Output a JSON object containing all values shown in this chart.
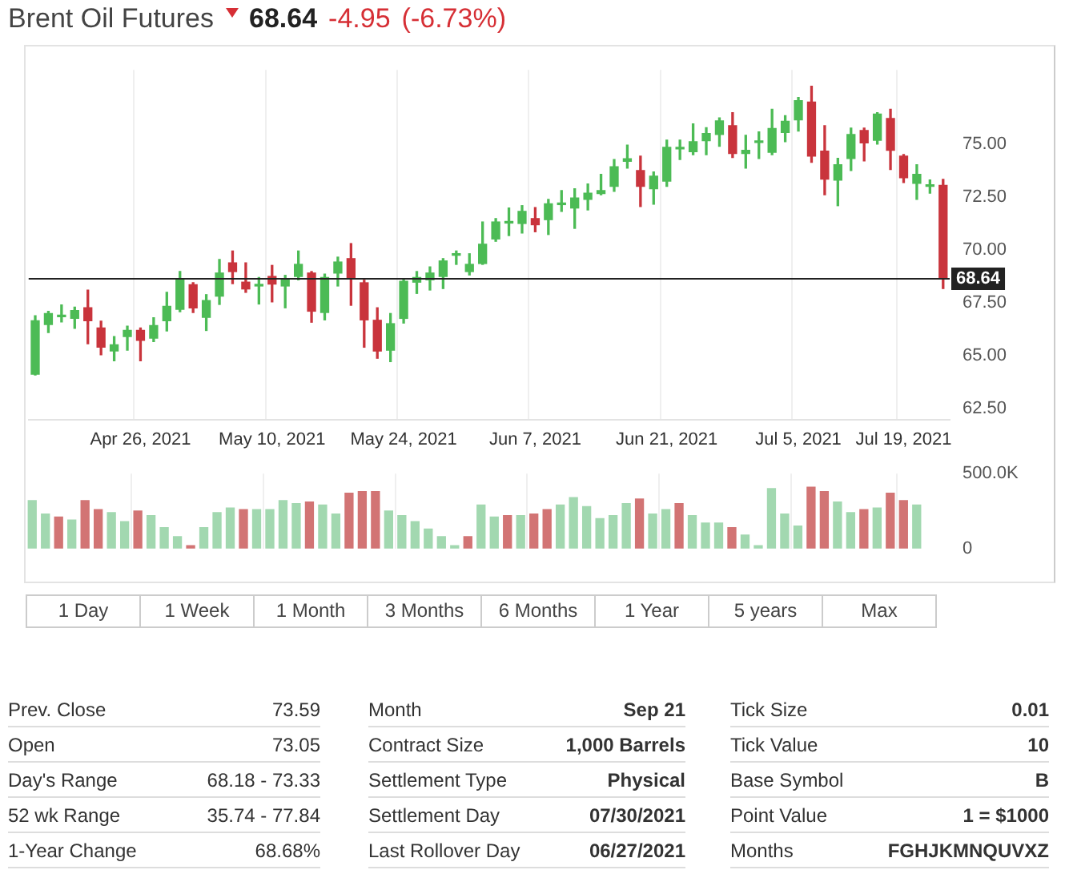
{
  "chart_data": [
    {
      "type": "candlestick",
      "title": "Brent Oil Futures",
      "annotations": [
        "68.64",
        "-4.95",
        "(-6.73%)",
        "1 Day",
        "1 Week",
        "1 Month",
        "3 Months",
        "6 Months",
        "1 Year",
        "5 years",
        "Max",
        "Prev. Close",
        "73.59",
        "Open",
        "73.05",
        "Day's Range",
        "68.18 - 73.33",
        "52 wk Range",
        "35.74 - 77.84",
        "1-Year Change",
        "68.68%",
        "Month",
        "Sep 21",
        "Contract Size",
        "1,000 Barrels",
        "Settlement Type",
        "Physical",
        "Settlement Day",
        "07/30/2021",
        "Last Rollover Day",
        "06/27/2021",
        "Tick Size",
        "0.01",
        "Tick Value",
        "10",
        "Base Symbol",
        "B",
        "Point Value",
        "1 = $1000",
        "Months",
        "FGHJKMNQUVXZ"
      ],
      "categories": [
        null,
        null,
        null,
        null,
        null,
        null,
        null,
        null,
        "Apr 26, 2021",
        null,
        null,
        null,
        null,
        null,
        null,
        null,
        null,
        null,
        "May 10, 2021",
        null,
        null,
        null,
        null,
        null,
        null,
        null,
        null,
        null,
        "May 24, 2021",
        null,
        null,
        null,
        null,
        null,
        null,
        null,
        null,
        null,
        "Jun 7, 2021",
        null,
        null,
        null,
        null,
        null,
        null,
        null,
        null,
        null,
        "Jun 21, 2021",
        null,
        null,
        null,
        null,
        null,
        null,
        null,
        null,
        null,
        "Jul 5, 2021",
        null,
        null,
        null,
        null,
        null,
        null,
        null,
        "Jul 19, 2021",
        null,
        null,
        null
      ],
      "ohlc": [
        [
          64.14,
          66.89,
          64.1,
          66.66
        ],
        [
          66.48,
          67.1,
          66.1,
          67.0
        ],
        [
          66.85,
          67.4,
          66.6,
          66.9
        ],
        [
          66.77,
          67.3,
          66.3,
          67.14
        ],
        [
          67.27,
          68.1,
          65.57,
          66.66
        ],
        [
          66.32,
          66.64,
          65.05,
          65.41
        ],
        [
          65.23,
          65.91,
          64.77,
          65.52
        ],
        [
          65.91,
          66.4,
          65.27,
          66.2
        ],
        [
          66.2,
          66.32,
          64.77,
          65.73
        ],
        [
          65.84,
          66.8,
          65.68,
          66.43
        ],
        [
          66.66,
          68.0,
          66.18,
          67.34
        ],
        [
          67.2,
          68.98,
          67.09,
          68.59
        ],
        [
          68.36,
          68.45,
          67.05,
          67.27
        ],
        [
          66.82,
          67.89,
          66.2,
          67.61
        ],
        [
          67.82,
          69.55,
          67.43,
          68.91
        ],
        [
          69.39,
          69.95,
          68.41,
          68.98
        ],
        [
          68.48,
          69.39,
          68.0,
          68.16
        ],
        [
          68.3,
          68.7,
          67.45,
          68.32
        ],
        [
          68.75,
          69.27,
          67.55,
          68.39
        ],
        [
          68.3,
          68.8,
          67.27,
          68.64
        ],
        [
          68.75,
          69.95,
          68.59,
          69.32
        ],
        [
          68.91,
          68.98,
          66.59,
          67.11
        ],
        [
          67.05,
          68.86,
          66.7,
          68.7
        ],
        [
          68.91,
          69.66,
          68.3,
          69.43
        ],
        [
          69.59,
          70.3,
          67.39,
          68.64
        ],
        [
          68.45,
          68.57,
          65.41,
          66.7
        ],
        [
          66.68,
          67.27,
          64.89,
          65.23
        ],
        [
          65.27,
          67.0,
          64.73,
          66.52
        ],
        [
          66.77,
          68.64,
          66.55,
          68.52
        ],
        [
          68.48,
          68.98,
          67.95,
          68.7
        ],
        [
          68.59,
          69.2,
          68.11,
          68.91
        ],
        [
          68.75,
          69.59,
          68.18,
          69.48
        ],
        [
          69.75,
          69.95,
          69.32,
          69.77
        ],
        [
          68.98,
          69.82,
          68.82,
          69.32
        ],
        [
          69.36,
          71.32,
          69.32,
          70.27
        ],
        [
          70.52,
          71.48,
          70.41,
          71.32
        ],
        [
          71.27,
          71.98,
          70.68,
          71.3
        ],
        [
          71.25,
          72.09,
          70.8,
          71.82
        ],
        [
          71.48,
          72.0,
          70.86,
          71.19
        ],
        [
          71.43,
          72.39,
          70.73,
          72.18
        ],
        [
          72.14,
          72.8,
          71.82,
          72.16
        ],
        [
          71.98,
          72.89,
          71.02,
          72.45
        ],
        [
          72.39,
          73.11,
          71.89,
          72.68
        ],
        [
          72.66,
          73.57,
          72.61,
          72.8
        ],
        [
          73.0,
          74.27,
          72.77,
          73.93
        ],
        [
          74.18,
          74.95,
          73.86,
          74.3
        ],
        [
          73.75,
          74.43,
          72.05,
          73.0
        ],
        [
          72.89,
          73.68,
          72.16,
          73.48
        ],
        [
          73.25,
          75.18,
          73.0,
          74.84
        ],
        [
          74.77,
          75.18,
          74.27,
          74.8
        ],
        [
          74.64,
          75.95,
          74.5,
          75.11
        ],
        [
          75.16,
          75.77,
          74.5,
          75.5
        ],
        [
          75.45,
          76.23,
          74.89,
          76.09
        ],
        [
          75.86,
          76.48,
          74.36,
          74.55
        ],
        [
          74.55,
          75.41,
          73.86,
          74.7
        ],
        [
          75.07,
          75.57,
          74.32,
          75.09
        ],
        [
          74.61,
          76.64,
          74.5,
          75.73
        ],
        [
          75.55,
          76.34,
          75.11,
          76.07
        ],
        [
          76.14,
          77.2,
          75.61,
          77.05
        ],
        [
          76.98,
          77.73,
          74.14,
          74.43
        ],
        [
          74.66,
          75.86,
          72.61,
          73.34
        ],
        [
          73.3,
          74.32,
          72.09,
          74.02
        ],
        [
          74.32,
          75.75,
          73.75,
          75.45
        ],
        [
          75.64,
          75.75,
          74.2,
          75.05
        ],
        [
          75.18,
          76.48,
          75.0,
          76.41
        ],
        [
          76.2,
          76.64,
          73.8,
          74.7
        ],
        [
          74.43,
          74.5,
          73.18,
          73.41
        ],
        [
          73.14,
          74.02,
          72.39,
          73.57
        ],
        [
          73.0,
          73.3,
          72.68,
          73.02
        ],
        [
          73.05,
          73.33,
          68.18,
          68.64
        ]
      ],
      "colors": [
        "#4cbb55",
        "#4cbb55",
        "#4cbb55",
        "#4cbb55",
        "#c9343c",
        "#c9343c",
        "#4cbb55",
        "#4cbb55",
        "#c9343c",
        "#4cbb55",
        "#4cbb55",
        "#4cbb55",
        "#c9343c",
        "#4cbb55",
        "#4cbb55",
        "#c9343c",
        "#c9343c",
        "#4cbb55",
        "#c9343c",
        "#4cbb55",
        "#4cbb55",
        "#c9343c",
        "#4cbb55",
        "#4cbb55",
        "#c9343c",
        "#c9343c",
        "#c9343c",
        "#4cbb55",
        "#4cbb55",
        "#4cbb55",
        "#4cbb55",
        "#4cbb55",
        "#4cbb55",
        "#4cbb55",
        "#4cbb55",
        "#4cbb55",
        "#4cbb55",
        "#4cbb55",
        "#c9343c",
        "#4cbb55",
        "#4cbb55",
        "#4cbb55",
        "#4cbb55",
        "#4cbb55",
        "#4cbb55",
        "#4cbb55",
        "#c9343c",
        "#4cbb55",
        "#4cbb55",
        "#4cbb55",
        "#4cbb55",
        "#4cbb55",
        "#4cbb55",
        "#c9343c",
        "#4cbb55",
        "#4cbb55",
        "#4cbb55",
        "#4cbb55",
        "#4cbb55",
        "#c9343c",
        "#c9343c",
        "#4cbb55",
        "#4cbb55",
        "#c9343c",
        "#4cbb55",
        "#c9343c",
        "#c9343c",
        "#4cbb55",
        "#4cbb55",
        "#c9343c"
      ],
      "ylim": [
        62,
        78.5
      ],
      "yticks": [
        {
          "value": 62.5,
          "label": "62.50"
        },
        {
          "value": 65,
          "label": "65.00"
        },
        {
          "value": 67.5,
          "label": "67.50"
        },
        {
          "value": 70,
          "label": "70.00"
        },
        {
          "value": 72.5,
          "label": "72.50"
        },
        {
          "value": 75,
          "label": "75.00"
        }
      ],
      "ref_lines": [
        {
          "axis": "y",
          "value": 68.64,
          "label": "68.64",
          "color": "#222222"
        }
      ],
      "grid": "x"
    },
    {
      "type": "bar",
      "categories": [
        null,
        null,
        null,
        null,
        null,
        null,
        null,
        null,
        null,
        null,
        null,
        null,
        null,
        null,
        null,
        null,
        null,
        null,
        null,
        null,
        null,
        null,
        null,
        null,
        null,
        null,
        null,
        null,
        null,
        null,
        null,
        null,
        null,
        null,
        null,
        null,
        null,
        null,
        null,
        null,
        null,
        null,
        null,
        null,
        null,
        null,
        null,
        null,
        null,
        null,
        null,
        null,
        null,
        null,
        null,
        null,
        null,
        null,
        null,
        null,
        null,
        null,
        null,
        null,
        null,
        null,
        null,
        null,
        null,
        null
      ],
      "values": [
        320000,
        230000,
        210000,
        190000,
        320000,
        260000,
        240000,
        180000,
        250000,
        220000,
        140000,
        80000,
        20000,
        140000,
        240000,
        270000,
        260000,
        260000,
        260000,
        320000,
        300000,
        310000,
        290000,
        230000,
        370000,
        380000,
        380000,
        250000,
        220000,
        180000,
        130000,
        80000,
        20000,
        80000,
        290000,
        210000,
        220000,
        220000,
        230000,
        260000,
        290000,
        340000,
        280000,
        200000,
        220000,
        300000,
        330000,
        230000,
        260000,
        300000,
        220000,
        170000,
        170000,
        140000,
        90000,
        20000,
        400000,
        230000,
        150000,
        410000,
        380000,
        310000,
        240000,
        260000,
        270000,
        370000,
        320000,
        290000,
        null,
        null
      ],
      "colors": [
        "#a2d8b0",
        "#a2d8b0",
        "#d27474",
        "#a2d8b0",
        "#d27474",
        "#d27474",
        "#a2d8b0",
        "#a2d8b0",
        "#d27474",
        "#a2d8b0",
        "#a2d8b0",
        "#a2d8b0",
        "#d27474",
        "#a2d8b0",
        "#a2d8b0",
        "#a2d8b0",
        "#d27474",
        "#a2d8b0",
        "#a2d8b0",
        "#a2d8b0",
        "#a2d8b0",
        "#d27474",
        "#a2d8b0",
        "#a2d8b0",
        "#d27474",
        "#d27474",
        "#d27474",
        "#a2d8b0",
        "#a2d8b0",
        "#a2d8b0",
        "#a2d8b0",
        "#a2d8b0",
        "#a2d8b0",
        "#d27474",
        "#a2d8b0",
        "#a2d8b0",
        "#d27474",
        "#a2d8b0",
        "#d27474",
        "#d27474",
        "#a2d8b0",
        "#a2d8b0",
        "#a2d8b0",
        "#a2d8b0",
        "#a2d8b0",
        "#a2d8b0",
        "#d27474",
        "#a2d8b0",
        "#a2d8b0",
        "#d27474",
        "#a2d8b0",
        "#a2d8b0",
        "#a2d8b0",
        "#d27474",
        "#a2d8b0",
        "#a2d8b0",
        "#a2d8b0",
        "#a2d8b0",
        "#a2d8b0",
        "#d27474",
        "#d27474",
        "#a2d8b0",
        "#a2d8b0",
        "#d27474",
        "#a2d8b0",
        "#d27474",
        "#d27474",
        "#a2d8b0",
        null,
        null
      ],
      "ylim": [
        0,
        500000
      ],
      "yticks": [
        0,
        {
          "value": 500000,
          "label": "500.0K"
        }
      ],
      "tick_labels": "y",
      "grid": "x"
    }
  ]
}
